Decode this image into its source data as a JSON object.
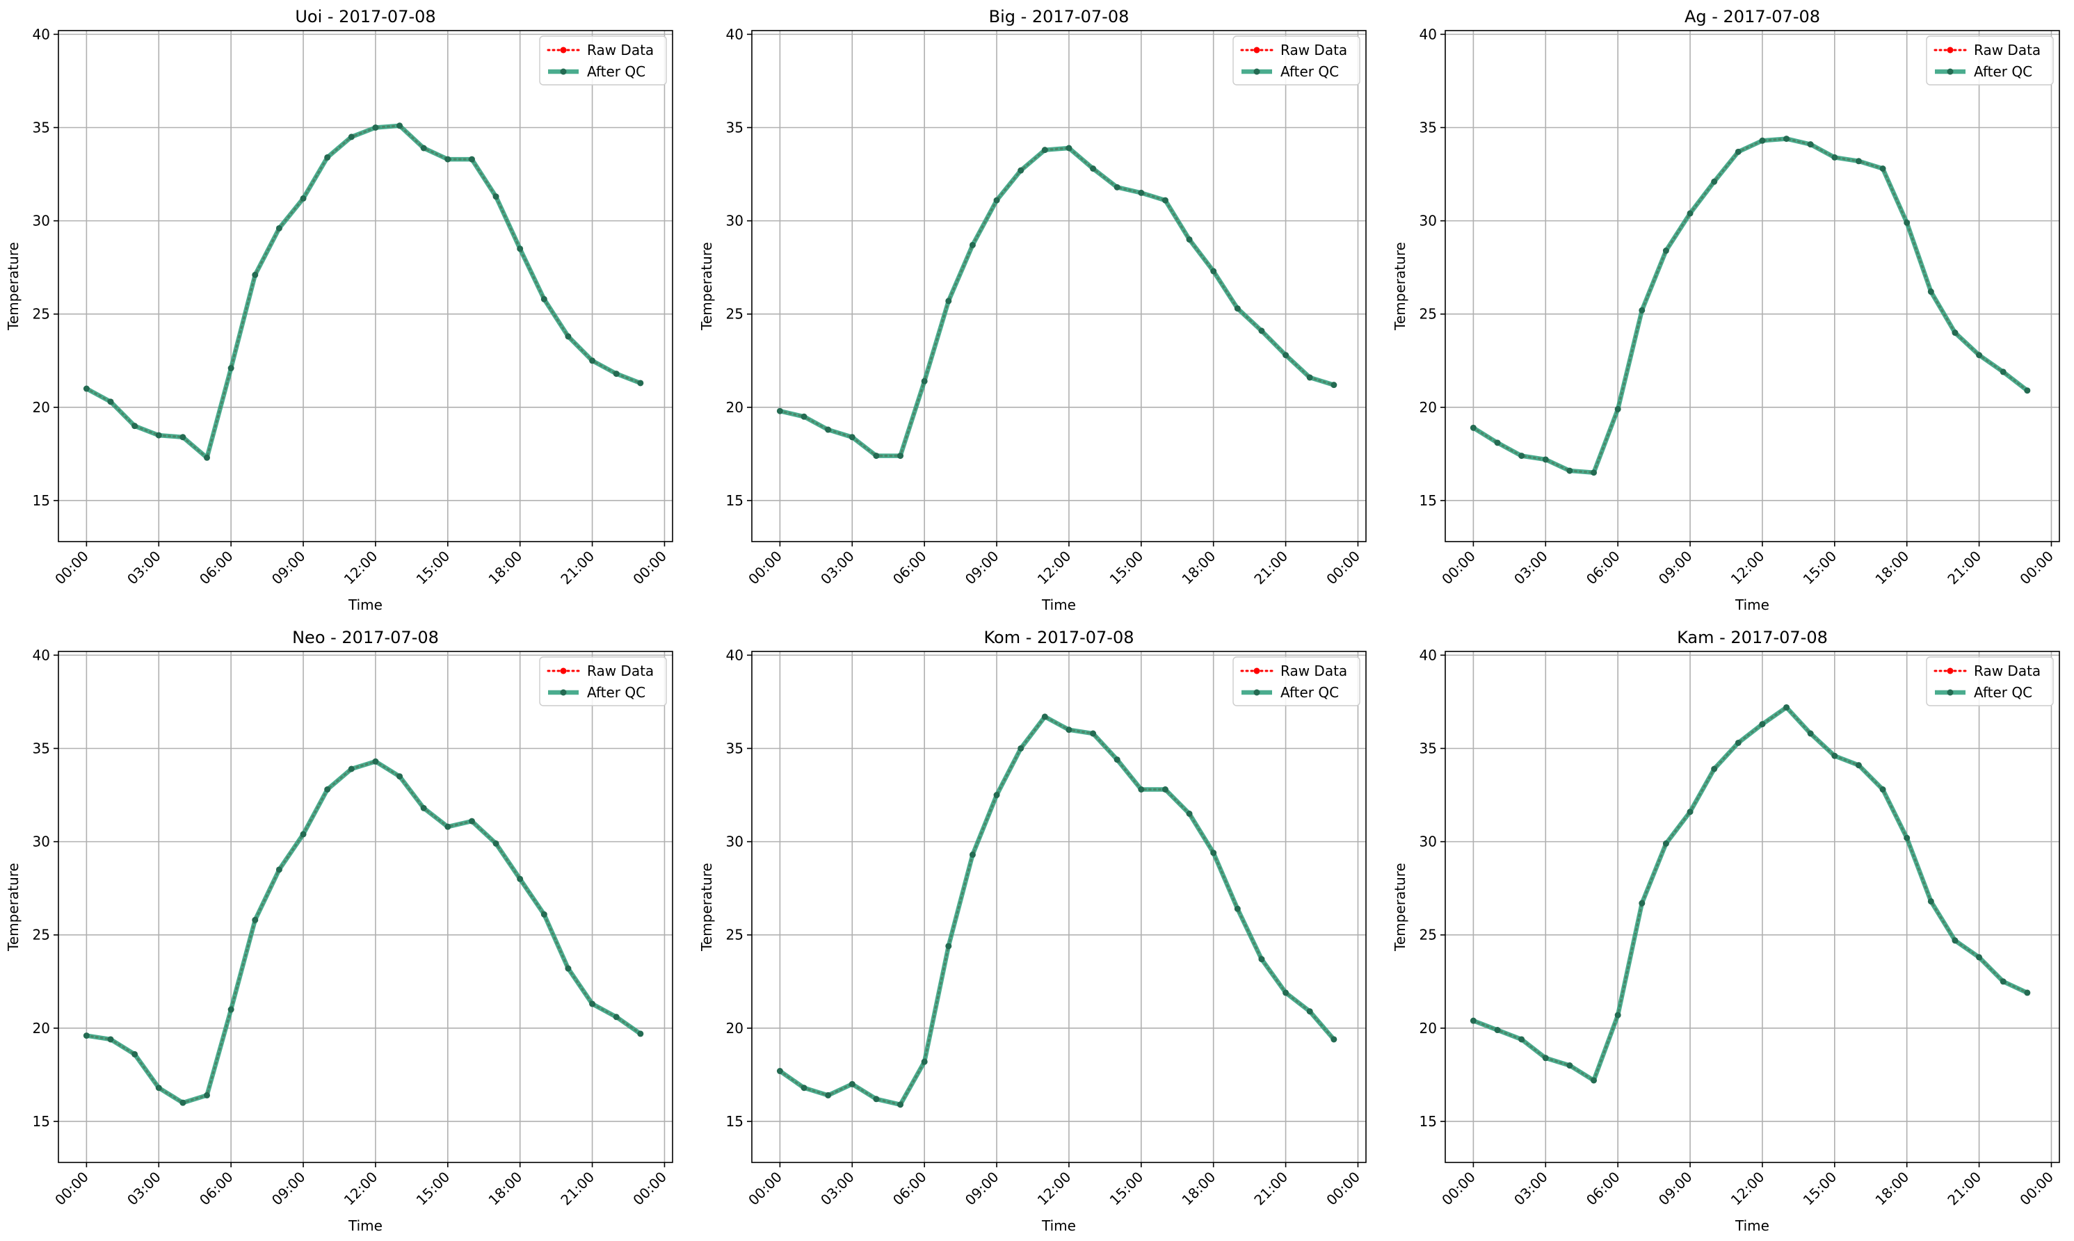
{
  "chart_data": [
    {
      "type": "line",
      "title": "Uoi - 2017-07-08",
      "xlabel": "Time",
      "ylabel": "Temperature",
      "x_range": [
        "2017-07-07 22:50",
        "2017-07-09 00:20"
      ],
      "xticks": [
        "00:00",
        "03:00",
        "06:00",
        "09:00",
        "12:00",
        "15:00",
        "18:00",
        "21:00",
        "00:00"
      ],
      "ylim": [
        12.8,
        40.2
      ],
      "yticks": [
        15,
        20,
        25,
        30,
        35,
        40
      ],
      "grid": true,
      "legend_position": "top-right",
      "x": [
        "00:00",
        "01:00",
        "02:00",
        "03:00",
        "04:00",
        "05:00",
        "06:00",
        "07:00",
        "08:00",
        "09:00",
        "10:00",
        "11:00",
        "12:00",
        "13:00",
        "14:00",
        "15:00",
        "16:00",
        "17:00",
        "18:00",
        "19:00",
        "20:00",
        "21:00",
        "22:00",
        "23:00"
      ],
      "series": [
        {
          "name": "Raw Data",
          "style": "dotted-red",
          "values": [
            21.0,
            20.3,
            19.0,
            18.5,
            18.4,
            17.3,
            22.1,
            27.1,
            29.6,
            31.2,
            33.4,
            34.5,
            35.0,
            35.1,
            33.9,
            33.3,
            33.3,
            31.3,
            28.5,
            25.8,
            23.8,
            22.5,
            21.8,
            21.3
          ]
        },
        {
          "name": "After QC",
          "style": "solid-teal",
          "values": [
            21.0,
            20.3,
            19.0,
            18.5,
            18.4,
            17.3,
            22.1,
            27.1,
            29.6,
            31.2,
            33.4,
            34.5,
            35.0,
            35.1,
            33.9,
            33.3,
            33.3,
            31.3,
            28.5,
            25.8,
            23.8,
            22.5,
            21.8,
            21.3
          ]
        }
      ]
    },
    {
      "type": "line",
      "title": "Big - 2017-07-08",
      "xlabel": "Time",
      "ylabel": "Temperature",
      "x_range": [
        "2017-07-07 22:50",
        "2017-07-09 00:20"
      ],
      "xticks": [
        "00:00",
        "03:00",
        "06:00",
        "09:00",
        "12:00",
        "15:00",
        "18:00",
        "21:00",
        "00:00"
      ],
      "ylim": [
        12.8,
        40.2
      ],
      "yticks": [
        15,
        20,
        25,
        30,
        35,
        40
      ],
      "grid": true,
      "legend_position": "top-right",
      "x": [
        "00:00",
        "01:00",
        "02:00",
        "03:00",
        "04:00",
        "05:00",
        "06:00",
        "07:00",
        "08:00",
        "09:00",
        "10:00",
        "11:00",
        "12:00",
        "13:00",
        "14:00",
        "15:00",
        "16:00",
        "17:00",
        "18:00",
        "19:00",
        "20:00",
        "21:00",
        "22:00",
        "23:00"
      ],
      "series": [
        {
          "name": "Raw Data",
          "style": "dotted-red",
          "values": [
            19.8,
            19.5,
            18.8,
            18.4,
            17.4,
            17.4,
            21.4,
            25.7,
            28.7,
            31.1,
            32.7,
            33.8,
            33.9,
            32.8,
            31.8,
            31.5,
            31.1,
            29.0,
            27.3,
            25.3,
            24.1,
            22.8,
            21.6,
            21.2
          ]
        },
        {
          "name": "After QC",
          "style": "solid-teal",
          "values": [
            19.8,
            19.5,
            18.8,
            18.4,
            17.4,
            17.4,
            21.4,
            25.7,
            28.7,
            31.1,
            32.7,
            33.8,
            33.9,
            32.8,
            31.8,
            31.5,
            31.1,
            29.0,
            27.3,
            25.3,
            24.1,
            22.8,
            21.6,
            21.2
          ]
        }
      ]
    },
    {
      "type": "line",
      "title": "Ag - 2017-07-08",
      "xlabel": "Time",
      "ylabel": "Temperature",
      "x_range": [
        "2017-07-07 22:50",
        "2017-07-09 00:20"
      ],
      "xticks": [
        "00:00",
        "03:00",
        "06:00",
        "09:00",
        "12:00",
        "15:00",
        "18:00",
        "21:00",
        "00:00"
      ],
      "ylim": [
        12.8,
        40.2
      ],
      "yticks": [
        15,
        20,
        25,
        30,
        35,
        40
      ],
      "grid": true,
      "legend_position": "top-right",
      "x": [
        "00:00",
        "01:00",
        "02:00",
        "03:00",
        "04:00",
        "05:00",
        "06:00",
        "07:00",
        "08:00",
        "09:00",
        "10:00",
        "11:00",
        "12:00",
        "13:00",
        "14:00",
        "15:00",
        "16:00",
        "17:00",
        "18:00",
        "19:00",
        "20:00",
        "21:00",
        "22:00",
        "23:00"
      ],
      "series": [
        {
          "name": "Raw Data",
          "style": "dotted-red",
          "values": [
            18.9,
            18.1,
            17.4,
            17.2,
            16.6,
            16.5,
            19.9,
            25.2,
            28.4,
            30.4,
            32.1,
            33.7,
            34.3,
            34.4,
            34.1,
            33.4,
            33.2,
            32.8,
            29.9,
            26.2,
            24.0,
            22.8,
            21.9,
            20.9
          ]
        },
        {
          "name": "After QC",
          "style": "solid-teal",
          "values": [
            18.9,
            18.1,
            17.4,
            17.2,
            16.6,
            16.5,
            19.9,
            25.2,
            28.4,
            30.4,
            32.1,
            33.7,
            34.3,
            34.4,
            34.1,
            33.4,
            33.2,
            32.8,
            29.9,
            26.2,
            24.0,
            22.8,
            21.9,
            20.9
          ]
        }
      ]
    },
    {
      "type": "line",
      "title": "Neo - 2017-07-08",
      "xlabel": "Time",
      "ylabel": "Temperature",
      "x_range": [
        "2017-07-07 22:50",
        "2017-07-09 00:20"
      ],
      "xticks": [
        "00:00",
        "03:00",
        "06:00",
        "09:00",
        "12:00",
        "15:00",
        "18:00",
        "21:00",
        "00:00"
      ],
      "ylim": [
        12.8,
        40.2
      ],
      "yticks": [
        15,
        20,
        25,
        30,
        35,
        40
      ],
      "grid": true,
      "legend_position": "top-right",
      "x": [
        "00:00",
        "01:00",
        "02:00",
        "03:00",
        "04:00",
        "05:00",
        "06:00",
        "07:00",
        "08:00",
        "09:00",
        "10:00",
        "11:00",
        "12:00",
        "13:00",
        "14:00",
        "15:00",
        "16:00",
        "17:00",
        "18:00",
        "19:00",
        "20:00",
        "21:00",
        "22:00",
        "23:00"
      ],
      "series": [
        {
          "name": "Raw Data",
          "style": "dotted-red",
          "values": [
            19.6,
            19.4,
            18.6,
            16.8,
            16.0,
            16.4,
            21.0,
            25.8,
            28.5,
            30.4,
            32.8,
            33.9,
            34.3,
            33.5,
            31.8,
            30.8,
            31.1,
            29.9,
            28.0,
            26.1,
            23.2,
            21.3,
            20.6,
            19.7
          ]
        },
        {
          "name": "After QC",
          "style": "solid-teal",
          "values": [
            19.6,
            19.4,
            18.6,
            16.8,
            16.0,
            16.4,
            21.0,
            25.8,
            28.5,
            30.4,
            32.8,
            33.9,
            34.3,
            33.5,
            31.8,
            30.8,
            31.1,
            29.9,
            28.0,
            26.1,
            23.2,
            21.3,
            20.6,
            19.7
          ]
        }
      ]
    },
    {
      "type": "line",
      "title": "Kom - 2017-07-08",
      "xlabel": "Time",
      "ylabel": "Temperature",
      "x_range": [
        "2017-07-07 22:50",
        "2017-07-09 00:20"
      ],
      "xticks": [
        "00:00",
        "03:00",
        "06:00",
        "09:00",
        "12:00",
        "15:00",
        "18:00",
        "21:00",
        "00:00"
      ],
      "ylim": [
        12.8,
        40.2
      ],
      "yticks": [
        15,
        20,
        25,
        30,
        35,
        40
      ],
      "grid": true,
      "legend_position": "top-right",
      "x": [
        "00:00",
        "01:00",
        "02:00",
        "03:00",
        "04:00",
        "05:00",
        "06:00",
        "07:00",
        "08:00",
        "09:00",
        "10:00",
        "11:00",
        "12:00",
        "13:00",
        "14:00",
        "15:00",
        "16:00",
        "17:00",
        "18:00",
        "19:00",
        "20:00",
        "21:00",
        "22:00",
        "23:00"
      ],
      "series": [
        {
          "name": "Raw Data",
          "style": "dotted-red",
          "values": [
            17.7,
            16.8,
            16.4,
            17.0,
            16.2,
            15.9,
            18.2,
            24.4,
            29.3,
            32.5,
            35.0,
            36.7,
            36.0,
            35.8,
            34.4,
            32.8,
            32.8,
            31.5,
            29.4,
            26.4,
            23.7,
            21.9,
            20.9,
            19.4
          ]
        },
        {
          "name": "After QC",
          "style": "solid-teal",
          "values": [
            17.7,
            16.8,
            16.4,
            17.0,
            16.2,
            15.9,
            18.2,
            24.4,
            29.3,
            32.5,
            35.0,
            36.7,
            36.0,
            35.8,
            34.4,
            32.8,
            32.8,
            31.5,
            29.4,
            26.4,
            23.7,
            21.9,
            20.9,
            19.4
          ]
        }
      ]
    },
    {
      "type": "line",
      "title": "Kam - 2017-07-08",
      "xlabel": "Time",
      "ylabel": "Temperature",
      "x_range": [
        "2017-07-07 22:50",
        "2017-07-09 00:20"
      ],
      "xticks": [
        "00:00",
        "03:00",
        "06:00",
        "09:00",
        "12:00",
        "15:00",
        "18:00",
        "21:00",
        "00:00"
      ],
      "ylim": [
        12.8,
        40.2
      ],
      "yticks": [
        15,
        20,
        25,
        30,
        35,
        40
      ],
      "grid": true,
      "legend_position": "top-right",
      "x": [
        "00:00",
        "01:00",
        "02:00",
        "03:00",
        "04:00",
        "05:00",
        "06:00",
        "07:00",
        "08:00",
        "09:00",
        "10:00",
        "11:00",
        "12:00",
        "13:00",
        "14:00",
        "15:00",
        "16:00",
        "17:00",
        "18:00",
        "19:00",
        "20:00",
        "21:00",
        "22:00",
        "23:00"
      ],
      "series": [
        {
          "name": "Raw Data",
          "style": "dotted-red",
          "values": [
            20.4,
            19.9,
            19.4,
            18.4,
            18.0,
            17.2,
            20.7,
            26.7,
            29.9,
            31.6,
            33.9,
            35.3,
            36.3,
            37.2,
            35.8,
            34.6,
            34.1,
            32.8,
            30.2,
            26.8,
            24.7,
            23.8,
            22.5,
            21.9
          ]
        },
        {
          "name": "After QC",
          "style": "solid-teal",
          "values": [
            20.4,
            19.9,
            19.4,
            18.4,
            18.0,
            17.2,
            20.7,
            26.7,
            29.9,
            31.6,
            33.9,
            35.3,
            36.3,
            37.2,
            35.8,
            34.6,
            34.1,
            32.8,
            30.2,
            26.8,
            24.7,
            23.8,
            22.5,
            21.9
          ]
        }
      ]
    }
  ],
  "colors": {
    "raw": "#ff0000",
    "qc_line": "#2a9d7a",
    "qc_marker": "#246b52",
    "grid": "#b0b0b0",
    "axis": "#000000",
    "legend_border": "#cccccc"
  }
}
